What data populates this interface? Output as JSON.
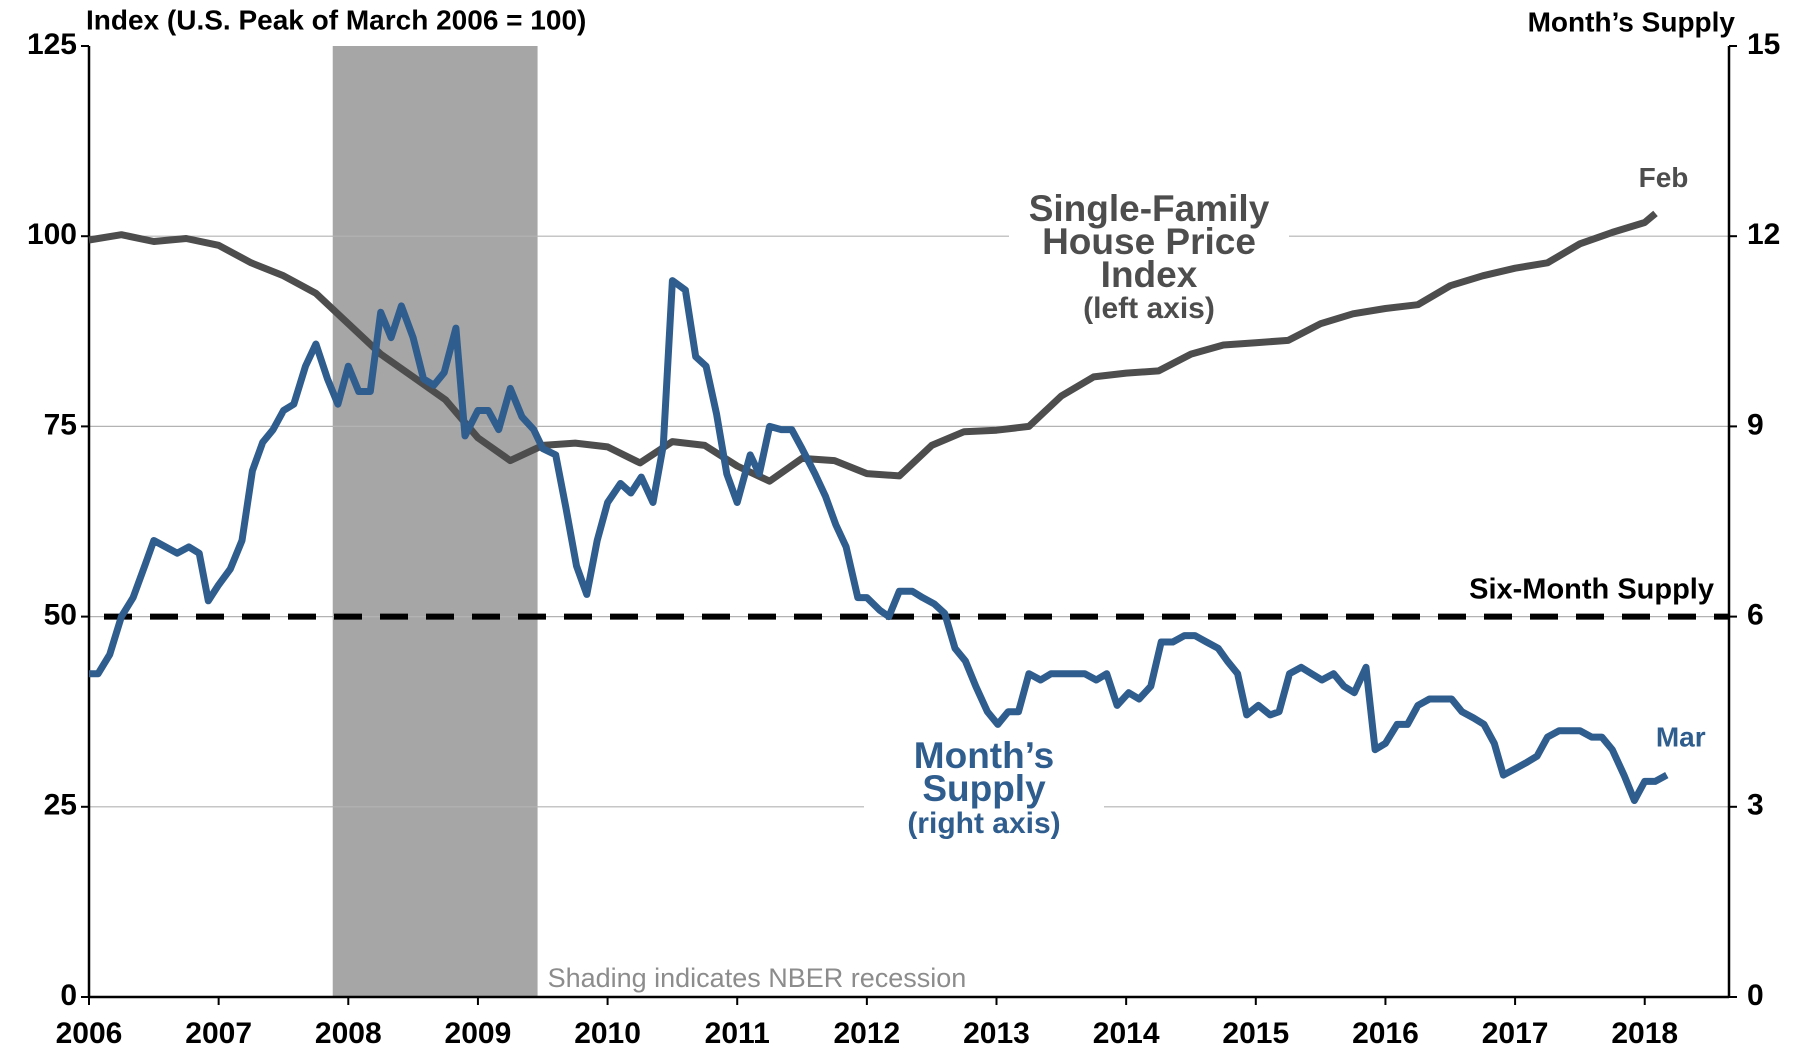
{
  "chart_data": {
    "type": "line",
    "y_axis_label": "Index (U.S. Peak of March 2006 = 100)",
    "y2_axis_label": "Month’s Supply",
    "xlim": [
      2006,
      2018.65
    ],
    "xticks": [
      2006,
      2007,
      2008,
      2009,
      2010,
      2011,
      2012,
      2013,
      2014,
      2015,
      2016,
      2017,
      2018
    ],
    "ylim": [
      0,
      125
    ],
    "yticks": [
      0,
      25,
      50,
      75,
      100,
      125
    ],
    "y2lim": [
      0,
      15
    ],
    "y2ticks": [
      0,
      3,
      6,
      9,
      12,
      15
    ],
    "grid": true,
    "shaded_regions": [
      {
        "x": [
          2007.88,
          2009.46
        ],
        "color": "#a6a6a6"
      }
    ],
    "shading_note": "Shading indicates NBER recession",
    "reference_lines": [
      {
        "value": 6,
        "axis": "y2",
        "label": "Six-Month Supply",
        "color": "#000000"
      }
    ],
    "series": [
      {
        "name_lines": [
          "Single-Family",
          "House Price",
          "Index"
        ],
        "axis_note": "(left axis)",
        "end_label": "Feb",
        "color": "#4d4d4d",
        "axis": "y",
        "x": [
          2006.0,
          2006.25,
          2006.5,
          2006.75,
          2007.0,
          2007.25,
          2007.5,
          2007.75,
          2008.0,
          2008.25,
          2008.5,
          2008.75,
          2009.0,
          2009.25,
          2009.5,
          2009.75,
          2010.0,
          2010.25,
          2010.5,
          2010.75,
          2011.0,
          2011.25,
          2011.5,
          2011.75,
          2012.0,
          2012.25,
          2012.5,
          2012.75,
          2013.0,
          2013.25,
          2013.5,
          2013.75,
          2014.0,
          2014.25,
          2014.5,
          2014.75,
          2015.0,
          2015.25,
          2015.5,
          2015.75,
          2016.0,
          2016.25,
          2016.5,
          2016.75,
          2017.0,
          2017.25,
          2017.5,
          2017.75,
          2018.0,
          2018.083
        ],
        "values": [
          99.5,
          100.2,
          99.3,
          99.7,
          98.8,
          96.5,
          94.8,
          92.5,
          88.5,
          84.5,
          81.5,
          78.5,
          73.5,
          70.5,
          72.5,
          72.8,
          72.3,
          70.2,
          73,
          72.5,
          69.8,
          67.8,
          70.8,
          70.5,
          68.8,
          68.5,
          72.5,
          74.3,
          74.5,
          75,
          79,
          81.5,
          82,
          82.3,
          84.5,
          85.7,
          86,
          86.3,
          88.5,
          89.8,
          90.5,
          91,
          93.5,
          94.8,
          95.8,
          96.5,
          99,
          100.5,
          101.8,
          103
        ]
      },
      {
        "name_lines": [
          "Month’s",
          "Supply"
        ],
        "axis_note": "(right axis)",
        "end_label": "Mar",
        "color": "#2f5d8e",
        "axis": "y2",
        "x": [
          2006.0,
          2006.07,
          2006.16,
          2006.25,
          2006.34,
          2006.43,
          2006.5,
          2006.68,
          2006.77,
          2006.85,
          2006.92,
          2007.0,
          2007.09,
          2007.18,
          2007.26,
          2007.34,
          2007.42,
          2007.5,
          2007.58,
          2007.67,
          2007.75,
          2007.84,
          2007.92,
          2008.0,
          2008.08,
          2008.17,
          2008.25,
          2008.33,
          2008.41,
          2008.5,
          2008.58,
          2008.66,
          2008.74,
          2008.83,
          2008.9,
          2009.0,
          2009.08,
          2009.16,
          2009.25,
          2009.34,
          2009.43,
          2009.5,
          2009.6,
          2009.68,
          2009.76,
          2009.84,
          2009.92,
          2010.0,
          2010.1,
          2010.18,
          2010.26,
          2010.35,
          2010.43,
          2010.5,
          2010.6,
          2010.68,
          2010.76,
          2010.84,
          2010.92,
          2011.0,
          2011.1,
          2011.17,
          2011.25,
          2011.34,
          2011.42,
          2011.5,
          2011.6,
          2011.68,
          2011.76,
          2011.84,
          2011.93,
          2012.0,
          2012.1,
          2012.17,
          2012.25,
          2012.35,
          2012.43,
          2012.52,
          2012.6,
          2012.68,
          2012.76,
          2012.84,
          2012.93,
          2013.01,
          2013.09,
          2013.17,
          2013.25,
          2013.34,
          2013.42,
          2013.68,
          2013.77,
          2013.85,
          2013.93,
          2014.02,
          2014.1,
          2014.19,
          2014.27,
          2014.36,
          2014.45,
          2014.53,
          2014.62,
          2014.71,
          2014.78,
          2014.86,
          2014.93,
          2015.02,
          2015.11,
          2015.18,
          2015.26,
          2015.35,
          2015.43,
          2015.51,
          2015.6,
          2015.68,
          2015.76,
          2015.85,
          2015.92,
          2016.0,
          2016.09,
          2016.17,
          2016.25,
          2016.34,
          2016.51,
          2016.59,
          2016.68,
          2016.76,
          2016.84,
          2016.91,
          2017.0,
          2017.09,
          2017.17,
          2017.25,
          2017.34,
          2017.5,
          2017.59,
          2017.67,
          2017.75,
          2017.84,
          2017.92,
          2018.0,
          2018.08,
          2018.17
        ],
        "values": [
          5.1,
          5.1,
          5.4,
          6.0,
          6.3,
          6.8,
          7.2,
          7.0,
          7.1,
          7.0,
          6.25,
          6.5,
          6.75,
          7.2,
          8.3,
          8.75,
          8.95,
          9.25,
          9.35,
          9.95,
          10.3,
          9.75,
          9.35,
          9.95,
          9.55,
          9.55,
          10.8,
          10.4,
          10.9,
          10.4,
          9.75,
          9.65,
          9.85,
          10.55,
          8.85,
          9.25,
          9.25,
          8.95,
          9.6,
          9.15,
          8.95,
          8.65,
          8.55,
          7.7,
          6.8,
          6.35,
          7.2,
          7.8,
          8.1,
          7.95,
          8.2,
          7.8,
          8.7,
          11.3,
          11.15,
          10.1,
          9.95,
          9.2,
          8.25,
          7.8,
          8.55,
          8.25,
          9.0,
          8.95,
          8.95,
          8.65,
          8.25,
          7.9,
          7.45,
          7.1,
          6.3,
          6.3,
          6.1,
          6.0,
          6.4,
          6.4,
          6.3,
          6.2,
          6.05,
          5.5,
          5.3,
          4.9,
          4.5,
          4.3,
          4.5,
          4.5,
          5.1,
          5.0,
          5.1,
          5.1,
          5.0,
          5.1,
          4.6,
          4.8,
          4.7,
          4.9,
          5.6,
          5.6,
          5.7,
          5.7,
          5.6,
          5.5,
          5.3,
          5.1,
          4.45,
          4.6,
          4.45,
          4.5,
          5.1,
          5.2,
          5.1,
          5.0,
          5.1,
          4.9,
          4.8,
          5.2,
          3.9,
          4.0,
          4.3,
          4.3,
          4.6,
          4.7,
          4.7,
          4.5,
          4.4,
          4.3,
          4.0,
          3.5,
          3.6,
          3.7,
          3.8,
          4.1,
          4.2,
          4.2,
          4.1,
          4.1,
          3.9,
          3.5,
          3.1,
          3.4,
          3.4,
          3.5
        ]
      }
    ]
  }
}
